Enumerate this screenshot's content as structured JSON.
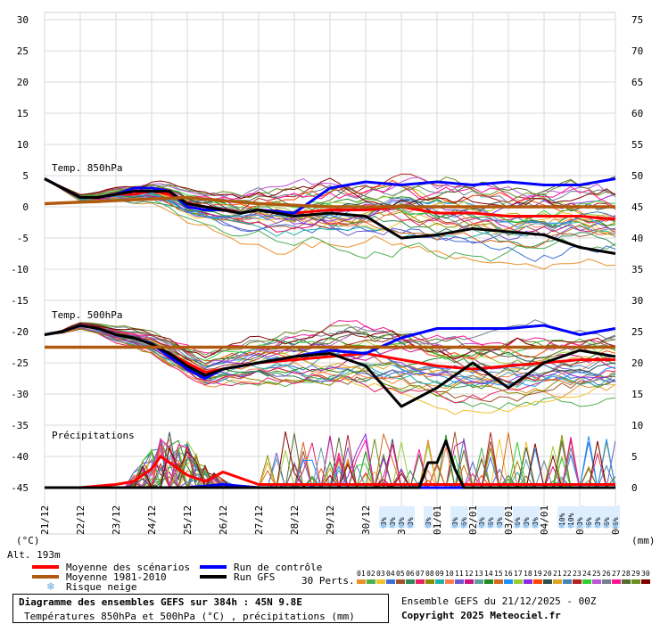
{
  "chart_data": {
    "type": "line",
    "title": "Diagramme des ensembles GEFS sur 384h : 45N 9.8E",
    "subtitle": "Températures 850hPa et 500hPa (°C) , précipitations (mm)",
    "run_info": "Ensemble GEFS du 21/12/2025 - 00Z",
    "copyright": "Copyright 2025 Meteociel.fr",
    "altitude": "Alt. 193m",
    "left_unit": "(°C)",
    "right_unit": "(mm)",
    "left_axis": {
      "ylim": [
        -45,
        30
      ],
      "ticks": [
        30,
        25,
        20,
        15,
        10,
        5,
        0,
        -5,
        -10,
        -15,
        -20,
        -25,
        -30,
        -35,
        -40,
        -45
      ]
    },
    "right_axis": {
      "ticks": [
        75,
        70,
        65,
        60,
        55,
        50,
        45,
        40,
        35,
        30,
        25,
        20,
        15,
        10,
        5,
        0
      ]
    },
    "x_dates": [
      "21/12",
      "22/12",
      "23/12",
      "24/12",
      "25/12",
      "26/12",
      "27/12",
      "28/12",
      "29/12",
      "30/12",
      "31/12",
      "01/01",
      "02/01",
      "03/01",
      "04/01",
      "05/01",
      "06/01"
    ],
    "panel_labels": [
      "Temp. 850hPa",
      "Temp. 500hPa",
      "Précipitations"
    ],
    "legend": {
      "mean": "Moyenne des scénarios",
      "control": "Run de contrôle",
      "climo": "Moyenne 1981-2010",
      "gfs": "Run GFS",
      "snow": "Risque neige",
      "perts": "30 Perts."
    },
    "snow_risk": [
      {
        "day": 9.5,
        "pct": "3%"
      },
      {
        "day": 9.75,
        "pct": "3%"
      },
      {
        "day": 10.0,
        "pct": "3%"
      },
      {
        "day": 10.25,
        "pct": "3%"
      },
      {
        "day": 10.75,
        "pct": "3%"
      },
      {
        "day": 11.5,
        "pct": "3%"
      },
      {
        "day": 11.75,
        "pct": "6%"
      },
      {
        "day": 12.25,
        "pct": "3%"
      },
      {
        "day": 12.5,
        "pct": "6%"
      },
      {
        "day": 12.75,
        "pct": "3%"
      },
      {
        "day": 13.25,
        "pct": "6%"
      },
      {
        "day": 13.5,
        "pct": "3%"
      },
      {
        "day": 13.75,
        "pct": "3%"
      },
      {
        "day": 14.5,
        "pct": "10%"
      },
      {
        "day": 14.75,
        "pct": "10%"
      },
      {
        "day": 15.0,
        "pct": "3%"
      },
      {
        "day": 15.25,
        "pct": "6%"
      },
      {
        "day": 15.5,
        "pct": "3%"
      },
      {
        "day": 15.75,
        "pct": "6%"
      },
      {
        "day": 16.0,
        "pct": "6%"
      }
    ],
    "pert_labels": [
      "01",
      "02",
      "03",
      "04",
      "05",
      "06",
      "07",
      "08",
      "09",
      "10",
      "11",
      "12",
      "13",
      "14",
      "15",
      "16",
      "17",
      "18",
      "19",
      "20",
      "21",
      "22",
      "23",
      "24",
      "25",
      "26",
      "27",
      "28",
      "29",
      "30"
    ],
    "pert_colors": [
      "#e8902a",
      "#4caf50",
      "#f2c12e",
      "#3b6fd6",
      "#a0522d",
      "#2e8b57",
      "#e91e63",
      "#8b8b00",
      "#20b2aa",
      "#ff7f50",
      "#6a5acd",
      "#c71585",
      "#5f9ea0",
      "#228b22",
      "#d2691e",
      "#1e90ff",
      "#9acd32",
      "#8a2be2",
      "#ff4500",
      "#2f4f4f",
      "#daa520",
      "#4682b4",
      "#b22222",
      "#32cd32",
      "#ba55d3",
      "#708090",
      "#ff1493",
      "#556b2f",
      "#6b8e23",
      "#800000"
    ],
    "series": [
      {
        "name": "Moyenne des scénarios",
        "color": "#ff0000",
        "panel": "t850",
        "x": [
          0,
          0.5,
          1,
          1.5,
          2,
          2.5,
          3,
          3.5,
          4,
          4.5,
          5,
          5.5,
          6,
          7,
          8,
          9,
          10,
          11,
          12,
          13,
          14,
          15,
          16
        ],
        "y": [
          4.5,
          3.0,
          1.5,
          1.5,
          2.0,
          2.0,
          2.5,
          2.0,
          0.5,
          0,
          -0.5,
          -1.0,
          -0.5,
          -1.0,
          -0.5,
          -0.5,
          0,
          -1.0,
          -1.0,
          -1.5,
          -1.5,
          -1.5,
          -2.0
        ]
      },
      {
        "name": "Run de contrôle",
        "color": "#0000ff",
        "panel": "t850",
        "x": [
          0,
          0.5,
          1,
          1.5,
          2,
          2.5,
          3,
          3.5,
          4,
          4.5,
          5,
          5.5,
          6,
          7,
          8,
          9,
          10,
          11,
          12,
          13,
          14,
          15,
          16
        ],
        "y": [
          4.5,
          3.0,
          1.5,
          1.5,
          2.0,
          3.0,
          3.0,
          2.5,
          0,
          -0.5,
          -0.5,
          -1.0,
          -0.5,
          -1.0,
          3.0,
          4.0,
          3.5,
          4.0,
          3.5,
          4.0,
          3.5,
          3.5,
          4.5
        ]
      },
      {
        "name": "Run GFS",
        "color": "#000000",
        "panel": "t850",
        "x": [
          0,
          0.5,
          1,
          1.5,
          2,
          2.5,
          3,
          3.5,
          4,
          4.5,
          5,
          5.5,
          6,
          7,
          8,
          9,
          10,
          11,
          12,
          13,
          14,
          15,
          16
        ],
        "y": [
          4.5,
          3.0,
          1.5,
          1.5,
          2.0,
          2.5,
          2.5,
          2.5,
          0.5,
          0,
          -0.5,
          -1.0,
          -0.5,
          -1.5,
          -1.0,
          -1.5,
          -5.0,
          -4.5,
          -3.5,
          -4.0,
          -4.5,
          -6.5,
          -7.5
        ]
      },
      {
        "name": "Moyenne 1981-2010",
        "color": "#b05a10",
        "panel": "t850",
        "x": [
          0,
          2,
          4,
          6,
          8,
          10,
          12,
          14,
          16
        ],
        "y": [
          0.5,
          1.0,
          1.5,
          0.5,
          0,
          0,
          0,
          0,
          0
        ]
      },
      {
        "name": "Moyenne des scénarios",
        "color": "#ff0000",
        "panel": "t500",
        "x": [
          0,
          0.5,
          1,
          1.5,
          2,
          2.5,
          3,
          3.5,
          4,
          4.5,
          5,
          5.5,
          6,
          7,
          8,
          9,
          10,
          11,
          12,
          13,
          14,
          15,
          16
        ],
        "y": [
          -20.5,
          -20.0,
          -19.0,
          -19.5,
          -20.5,
          -21.0,
          -22.0,
          -23.5,
          -25.0,
          -26.5,
          -26.0,
          -25.5,
          -25.0,
          -24.5,
          -24.0,
          -23.5,
          -24.5,
          -25.5,
          -26.0,
          -25.5,
          -25.0,
          -24.5,
          -24.5
        ]
      },
      {
        "name": "Run de contrôle",
        "color": "#0000ff",
        "panel": "t500",
        "x": [
          0,
          0.5,
          1,
          1.5,
          2,
          2.5,
          3,
          3.5,
          4,
          4.5,
          5,
          5.5,
          6,
          7,
          8,
          9,
          10,
          11,
          12,
          13,
          14,
          15,
          16
        ],
        "y": [
          -20.5,
          -20.0,
          -19.0,
          -19.5,
          -20.5,
          -21.0,
          -22.0,
          -24.0,
          -26.0,
          -27.5,
          -26.0,
          -25.5,
          -25.0,
          -24.0,
          -23.0,
          -23.5,
          -21.0,
          -19.5,
          -19.5,
          -19.5,
          -19.0,
          -20.5,
          -19.5
        ]
      },
      {
        "name": "Run GFS",
        "color": "#000000",
        "panel": "t500",
        "x": [
          0,
          0.5,
          1,
          1.5,
          2,
          2.5,
          3,
          3.5,
          4,
          4.5,
          5,
          5.5,
          6,
          7,
          8,
          9,
          10,
          11,
          12,
          13,
          14,
          15,
          16
        ],
        "y": [
          -20.5,
          -20.0,
          -19.0,
          -19.5,
          -20.5,
          -21.0,
          -22.0,
          -23.5,
          -25.5,
          -27.0,
          -26.0,
          -25.5,
          -25.0,
          -24.0,
          -23.5,
          -25.5,
          -32.0,
          -29.0,
          -25.0,
          -29.0,
          -25.0,
          -23.0,
          -24.0
        ]
      },
      {
        "name": "Moyenne 1981-2010",
        "color": "#b05a10",
        "panel": "t500",
        "x": [
          0,
          2,
          4,
          6,
          8,
          10,
          12,
          14,
          16
        ],
        "y": [
          -22.5,
          -22.5,
          -22.5,
          -22.5,
          -22.5,
          -22.5,
          -22.5,
          -22.5,
          -22.5
        ]
      },
      {
        "name": "Moyenne des scénarios",
        "color": "#ff0000",
        "panel": "precip",
        "x": [
          0,
          1,
          2,
          2.5,
          3,
          3.25,
          3.5,
          4,
          4.5,
          5,
          5.5,
          6,
          8,
          12,
          14,
          16
        ],
        "y": [
          0,
          0,
          0.5,
          1.0,
          3.0,
          5.0,
          4.0,
          2.0,
          1.0,
          2.5,
          1.5,
          0.5,
          0.5,
          0.5,
          0.5,
          0.5
        ]
      },
      {
        "name": "Run de contrôle",
        "color": "#0000ff",
        "panel": "precip",
        "x": [
          0,
          4,
          5,
          6,
          8,
          16
        ],
        "y": [
          0,
          0,
          0.5,
          0,
          0,
          0
        ]
      },
      {
        "name": "Run GFS",
        "color": "#000000",
        "panel": "precip",
        "x": [
          0,
          10.5,
          10.75,
          11.0,
          11.25,
          11.5,
          11.75,
          12,
          16
        ],
        "y": [
          0,
          0,
          4.0,
          4.0,
          7.5,
          3.0,
          0,
          0,
          0
        ]
      }
    ]
  }
}
